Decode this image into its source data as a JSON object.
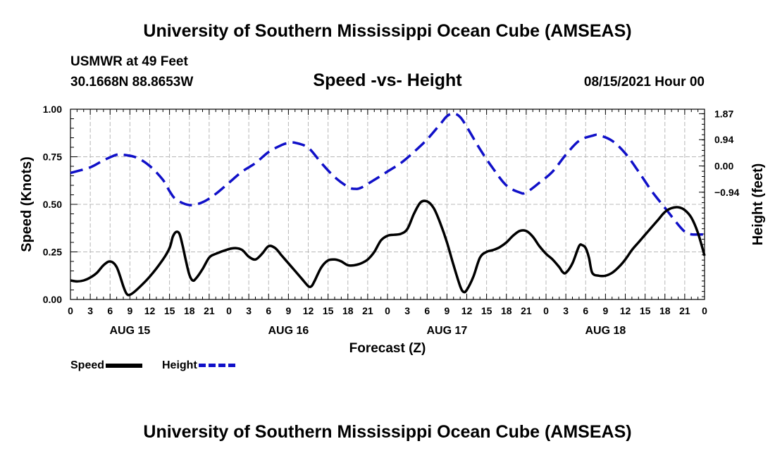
{
  "header": {
    "title": "University of Southern Mississippi Ocean Cube (AMSEAS)",
    "station": "USMWR at 49 Feet",
    "coords": "30.1668N  88.8653W",
    "plot_title": "Speed -vs- Height",
    "date": "08/15/2021 Hour 00"
  },
  "footer": {
    "title": "University of Southern Mississippi Ocean Cube (AMSEAS)"
  },
  "legend": {
    "speed": "Speed",
    "height": "Height"
  },
  "colors": {
    "speed": "#000000",
    "height": "#1010c8",
    "grid": "#b8b8b8"
  },
  "chart_data": {
    "type": "line",
    "title": "Speed -vs- Height",
    "xlabel": "Forecast (Z)",
    "ylabel": "Speed (Knots)",
    "y2label": "Height (feet)",
    "x_range": [
      0,
      96
    ],
    "xticks": [
      0,
      3,
      6,
      9,
      12,
      15,
      18,
      21,
      24,
      27,
      30,
      33,
      36,
      39,
      42,
      45,
      48,
      51,
      54,
      57,
      60,
      63,
      66,
      69,
      72,
      75,
      78,
      81,
      84,
      87,
      90,
      93,
      96
    ],
    "xtick_labels": [
      "0",
      "3",
      "6",
      "9",
      "12",
      "15",
      "18",
      "21",
      "0",
      "3",
      "6",
      "9",
      "12",
      "15",
      "18",
      "21",
      "0",
      "3",
      "6",
      "9",
      "12",
      "15",
      "18",
      "21",
      "0",
      "3",
      "6",
      "9",
      "12",
      "15",
      "18",
      "21",
      "0"
    ],
    "day_labels": [
      {
        "label": "AUG 15",
        "x": 9
      },
      {
        "label": "AUG 16",
        "x": 33
      },
      {
        "label": "AUG 17",
        "x": 57
      },
      {
        "label": "AUG 18",
        "x": 81
      }
    ],
    "ylim": [
      0,
      1.0
    ],
    "yticks": [
      0,
      0.25,
      0.5,
      0.75,
      1.0
    ],
    "ytick_labels": [
      "0.00",
      "0.25",
      "0.50",
      "0.75",
      "1.00"
    ],
    "y2lim": [
      -4.78,
      2.03
    ],
    "y2ticks": [
      -0.94,
      0.0,
      0.94,
      1.87
    ],
    "y2tick_labels": [
      "−0.94",
      "0.00",
      "0.94",
      "1.87"
    ],
    "series": [
      {
        "name": "Speed",
        "axis": "left",
        "style": "solid",
        "points": [
          [
            0,
            0.1
          ],
          [
            1,
            0.095
          ],
          [
            2,
            0.1
          ],
          [
            3,
            0.115
          ],
          [
            4,
            0.14
          ],
          [
            5,
            0.18
          ],
          [
            6,
            0.2
          ],
          [
            7,
            0.17
          ],
          [
            8,
            0.07
          ],
          [
            8.5,
            0.03
          ],
          [
            9,
            0.025
          ],
          [
            10,
            0.05
          ],
          [
            12,
            0.12
          ],
          [
            14,
            0.21
          ],
          [
            15,
            0.27
          ],
          [
            15.5,
            0.33
          ],
          [
            16,
            0.355
          ],
          [
            16.5,
            0.345
          ],
          [
            17,
            0.28
          ],
          [
            17.5,
            0.2
          ],
          [
            18,
            0.13
          ],
          [
            18.5,
            0.1
          ],
          [
            19,
            0.11
          ],
          [
            20,
            0.16
          ],
          [
            21,
            0.22
          ],
          [
            22,
            0.24
          ],
          [
            24,
            0.265
          ],
          [
            25,
            0.27
          ],
          [
            26,
            0.26
          ],
          [
            27,
            0.225
          ],
          [
            28,
            0.21
          ],
          [
            29,
            0.24
          ],
          [
            30,
            0.28
          ],
          [
            31,
            0.27
          ],
          [
            32,
            0.23
          ],
          [
            33,
            0.19
          ],
          [
            34,
            0.15
          ],
          [
            35,
            0.11
          ],
          [
            36,
            0.07
          ],
          [
            36.5,
            0.07
          ],
          [
            37,
            0.1
          ],
          [
            38,
            0.17
          ],
          [
            39,
            0.205
          ],
          [
            40,
            0.21
          ],
          [
            41,
            0.2
          ],
          [
            42,
            0.18
          ],
          [
            43,
            0.18
          ],
          [
            44,
            0.19
          ],
          [
            45,
            0.21
          ],
          [
            46,
            0.25
          ],
          [
            47,
            0.31
          ],
          [
            48,
            0.335
          ],
          [
            49,
            0.34
          ],
          [
            50,
            0.345
          ],
          [
            51,
            0.37
          ],
          [
            52,
            0.45
          ],
          [
            53,
            0.51
          ],
          [
            54,
            0.515
          ],
          [
            55,
            0.48
          ],
          [
            56,
            0.4
          ],
          [
            57,
            0.3
          ],
          [
            58,
            0.18
          ],
          [
            59,
            0.07
          ],
          [
            59.5,
            0.04
          ],
          [
            60,
            0.05
          ],
          [
            61,
            0.12
          ],
          [
            62,
            0.22
          ],
          [
            63,
            0.25
          ],
          [
            64,
            0.26
          ],
          [
            65,
            0.275
          ],
          [
            66,
            0.3
          ],
          [
            67,
            0.335
          ],
          [
            68,
            0.36
          ],
          [
            69,
            0.36
          ],
          [
            70,
            0.33
          ],
          [
            71,
            0.28
          ],
          [
            72,
            0.24
          ],
          [
            73,
            0.21
          ],
          [
            74,
            0.17
          ],
          [
            74.5,
            0.145
          ],
          [
            75,
            0.14
          ],
          [
            76,
            0.19
          ],
          [
            77,
            0.28
          ],
          [
            77.5,
            0.285
          ],
          [
            78,
            0.27
          ],
          [
            78.5,
            0.22
          ],
          [
            79,
            0.14
          ],
          [
            80,
            0.125
          ],
          [
            81,
            0.125
          ],
          [
            82,
            0.14
          ],
          [
            83,
            0.17
          ],
          [
            84,
            0.21
          ],
          [
            85,
            0.26
          ],
          [
            86,
            0.3
          ],
          [
            87,
            0.34
          ],
          [
            88,
            0.38
          ],
          [
            89,
            0.42
          ],
          [
            90,
            0.46
          ],
          [
            91,
            0.48
          ],
          [
            92,
            0.485
          ],
          [
            93,
            0.47
          ],
          [
            94,
            0.43
          ],
          [
            95,
            0.35
          ],
          [
            96,
            0.23
          ]
        ]
      },
      {
        "name": "Height",
        "axis": "right",
        "style": "dashed",
        "points": [
          [
            0,
            -0.25
          ],
          [
            3,
            -0.05
          ],
          [
            5,
            0.2
          ],
          [
            7,
            0.4
          ],
          [
            8,
            0.4
          ],
          [
            10,
            0.3
          ],
          [
            12,
            0.0
          ],
          [
            14,
            -0.5
          ],
          [
            15,
            -0.9
          ],
          [
            16,
            -1.2
          ],
          [
            18,
            -1.4
          ],
          [
            20,
            -1.3
          ],
          [
            22,
            -1.0
          ],
          [
            24,
            -0.6
          ],
          [
            26,
            -0.2
          ],
          [
            28,
            0.1
          ],
          [
            30,
            0.5
          ],
          [
            32,
            0.75
          ],
          [
            33,
            0.82
          ],
          [
            34,
            0.83
          ],
          [
            36,
            0.65
          ],
          [
            38,
            0.1
          ],
          [
            40,
            -0.4
          ],
          [
            42,
            -0.75
          ],
          [
            43,
            -0.82
          ],
          [
            44,
            -0.78
          ],
          [
            46,
            -0.5
          ],
          [
            48,
            -0.2
          ],
          [
            50,
            0.1
          ],
          [
            52,
            0.5
          ],
          [
            54,
            0.95
          ],
          [
            56,
            1.5
          ],
          [
            57,
            1.78
          ],
          [
            58,
            1.88
          ],
          [
            59,
            1.75
          ],
          [
            60,
            1.4
          ],
          [
            62,
            0.6
          ],
          [
            64,
            -0.1
          ],
          [
            66,
            -0.7
          ],
          [
            68,
            -0.95
          ],
          [
            69,
            -0.95
          ],
          [
            71,
            -0.6
          ],
          [
            73,
            -0.2
          ],
          [
            75,
            0.4
          ],
          [
            77,
            0.9
          ],
          [
            79,
            1.08
          ],
          [
            80,
            1.1
          ],
          [
            82,
            0.9
          ],
          [
            84,
            0.45
          ],
          [
            86,
            -0.2
          ],
          [
            88,
            -0.9
          ],
          [
            90,
            -1.5
          ],
          [
            92,
            -2.1
          ],
          [
            93,
            -2.35
          ],
          [
            94,
            -2.45
          ],
          [
            96,
            -2.45
          ]
        ]
      }
    ]
  }
}
